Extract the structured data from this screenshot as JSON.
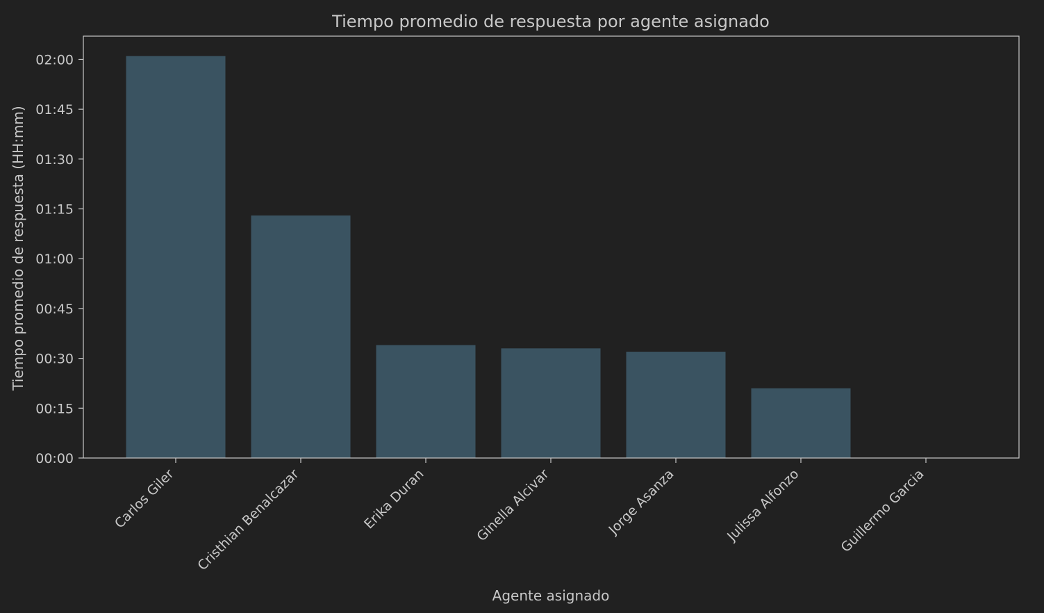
{
  "chart_data": {
    "type": "bar",
    "title": "Tiempo promedio de respuesta por agente asignado",
    "xlabel": "Agente asignado",
    "ylabel": "Tiempo promedio de respuesta (HH:mm)",
    "categories": [
      "Carlos Giler",
      "Cristhian Benalcazar",
      "Erika Duran",
      "Ginella Alcivar",
      "Jorge Asanza",
      "Julissa Alfonzo",
      "Guillermo  Garcia"
    ],
    "values_minutes": [
      121,
      73,
      34,
      33,
      32,
      21,
      0
    ],
    "y_ticks_minutes": [
      0,
      15,
      30,
      45,
      60,
      75,
      90,
      105,
      120
    ],
    "y_tick_labels": [
      "00:00",
      "00:15",
      "00:30",
      "00:45",
      "01:00",
      "01:15",
      "01:30",
      "01:45",
      "02:00"
    ],
    "ylim_minutes": [
      0,
      127
    ],
    "grid": false,
    "legend": "none",
    "colors": {
      "background": "#212121",
      "bar": "#3a5361",
      "axis": "#c8c8c8",
      "text": "#c8c8c8"
    }
  }
}
